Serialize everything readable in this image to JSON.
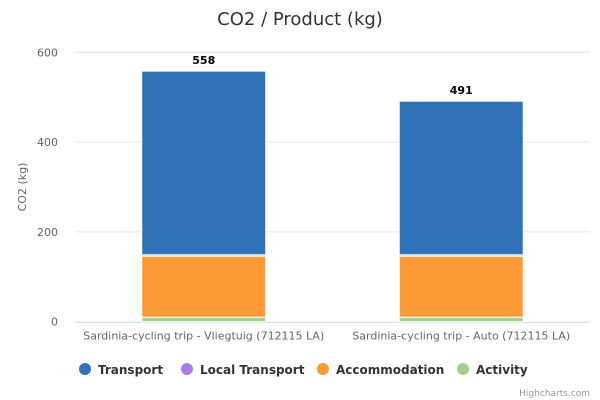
{
  "chart_data": {
    "type": "bar",
    "stacked": true,
    "title": "CO2 / Product (kg)",
    "xlabel": "",
    "ylabel": "CO2 (kg)",
    "ylim": [
      0,
      600
    ],
    "yticks": [
      0,
      200,
      400,
      600
    ],
    "grid": true,
    "categories": [
      "Sardinia-cycling trip - Vliegtuig (712115 LA)",
      "Sardinia-cycling trip - Auto (712115 LA)"
    ],
    "totals": [
      558,
      491
    ],
    "series": [
      {
        "name": "Transport",
        "color": "#2f72b5",
        "values": [
          409,
          342
        ]
      },
      {
        "name": "Local Transport",
        "color": "#a87fe0",
        "values": [
          3,
          3
        ]
      },
      {
        "name": "Accommodation",
        "color": "#fd9a36",
        "values": [
          136,
          136
        ]
      },
      {
        "name": "Activity",
        "color": "#a2d08e",
        "values": [
          10,
          10
        ]
      }
    ],
    "legend_position": "bottom",
    "credits": "Highcharts.com"
  }
}
